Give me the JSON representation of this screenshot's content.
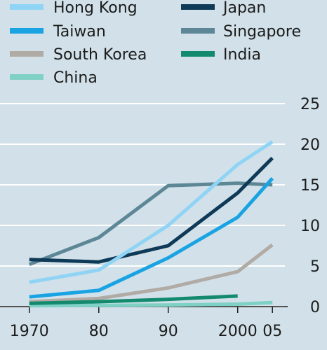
{
  "chart_data": {
    "type": "line",
    "x": [
      1970,
      1980,
      1990,
      2000,
      2005
    ],
    "x_tick_labels": [
      "1970",
      "80",
      "90",
      "2000",
      "05"
    ],
    "y_ticks": [
      0,
      5,
      10,
      15,
      20,
      25
    ],
    "ylim": [
      0,
      25
    ],
    "xlim": [
      1968,
      2007
    ],
    "grid": true,
    "y_axis_side": "right",
    "legend_placement": "top",
    "series": [
      {
        "name": "Hong Kong",
        "color": "#8fd3f5",
        "x": [
          1970,
          1980,
          1990,
          2000,
          2005
        ],
        "values": [
          3.0,
          4.5,
          10.0,
          17.5,
          20.3
        ]
      },
      {
        "name": "Japan",
        "color": "#0f3a57",
        "x": [
          1970,
          1980,
          1990,
          2000,
          2005
        ],
        "values": [
          5.8,
          5.5,
          7.5,
          14.0,
          18.3
        ]
      },
      {
        "name": "Taiwan",
        "color": "#1aa3e3",
        "x": [
          1970,
          1980,
          1990,
          2000,
          2005
        ],
        "values": [
          1.2,
          2.0,
          6.0,
          11.0,
          15.8
        ]
      },
      {
        "name": "Singapore",
        "color": "#5d8796",
        "x": [
          1970,
          1980,
          1990,
          2000,
          2005
        ],
        "values": [
          5.2,
          8.5,
          14.9,
          15.2,
          15.0
        ]
      },
      {
        "name": "South Korea",
        "color": "#b1aba6",
        "x": [
          1970,
          1980,
          1990,
          2000,
          2005
        ],
        "values": [
          0.6,
          1.0,
          2.3,
          4.3,
          7.6
        ]
      },
      {
        "name": "India",
        "color": "#138a6e",
        "x": [
          1970,
          1980,
          1990,
          2000
        ],
        "values": [
          0.4,
          0.6,
          0.9,
          1.3
        ]
      },
      {
        "name": "China",
        "color": "#7fd0c5",
        "x": [
          1970,
          1980,
          1990,
          2000,
          2005
        ],
        "values": [
          0.1,
          0.15,
          0.2,
          0.3,
          0.5
        ]
      }
    ]
  }
}
